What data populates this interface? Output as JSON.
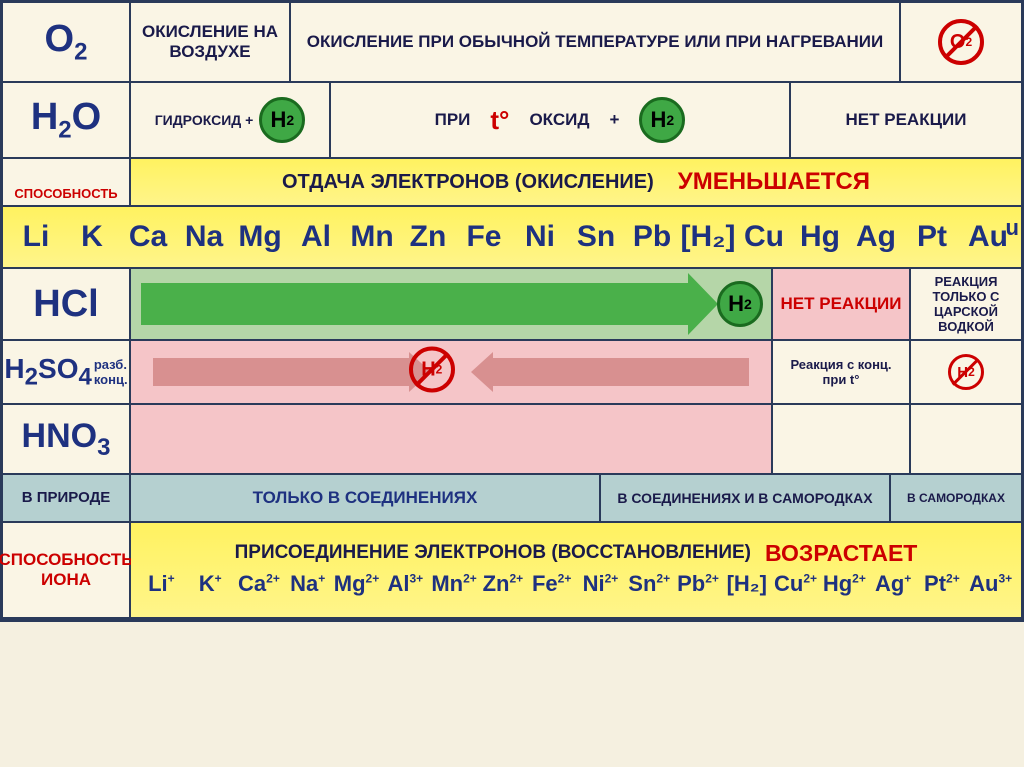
{
  "colors": {
    "border": "#2a3a5a",
    "formula": "#1e3180",
    "red": "#cc0000",
    "yellow": "#fff260",
    "green_circle": "#3fa845",
    "green_arrow": "#4ab04a",
    "pink": "#f5c5c8",
    "teal": "#b5d0d0",
    "bg": "#faf5e5"
  },
  "row1": {
    "formula": "O",
    "sub": "2",
    "c1": "ОКИСЛЕНИЕ НА ВОЗДУХЕ",
    "c2": "ОКИСЛЕНИЕ ПРИ ОБЫЧНОЙ ТЕМПЕРАТУРЕ ИЛИ ПРИ НАГРЕВАНИИ",
    "no_label": "O",
    "no_sub": "2"
  },
  "row2": {
    "formula": "H",
    "sub": "2",
    "suffix": "O",
    "c1a": "ГИДРОКСИД +",
    "c2a": "ПРИ",
    "c2b": "t°",
    "c2c": "ОКСИД",
    "c2d": "+",
    "c3": "НЕТ РЕАКЦИИ",
    "h2": "H",
    "h2sub": "2"
  },
  "row3": {
    "left": "СПОСОБНОСТЬ",
    "title": "ОТДАЧА ЭЛЕКТРОНОВ (ОКИСЛЕНИЕ)",
    "right": "УМЕНЬШАЕТСЯ"
  },
  "elements": [
    "Li",
    "K",
    "Ca",
    "Na",
    "Mg",
    "Al",
    "Mn",
    "Zn",
    "Fe",
    "Ni",
    "Sn",
    "Pb",
    "[H₂]",
    "Cu",
    "Hg",
    "Ag",
    "Pt",
    "Au"
  ],
  "extra_u": "u",
  "acids": {
    "hcl": "HCl",
    "h2so4": "H",
    "h2so4_s1": "2",
    "h2so4_mid": "SO",
    "h2so4_s2": "4",
    "razb": "разб.",
    "konc": "конц.",
    "hno3": "HNO",
    "hno3_s": "3",
    "no_reaction": "НЕТ РЕАКЦИИ",
    "conc_reaction": "Реакция с конц. при t°",
    "tsarskaya": "РЕАКЦИЯ ТОЛЬКО С ЦАРСКОЙ ВОДКОЙ",
    "h2": "H",
    "h2sub": "2"
  },
  "nature": {
    "left": "В ПРИРОДЕ",
    "c1": "ТОЛЬКО В СОЕДИНЕНИЯХ",
    "c2": "В СОЕДИНЕНИЯХ  И В САМОРОДКАХ",
    "c3": "В САМОРОДКАХ"
  },
  "bottom": {
    "left": "СПОСОБНОСТЬ ИОНА",
    "title": "ПРИСОЕДИНЕНИЕ ЭЛЕКТРОНОВ (ВОССТАНОВЛЕНИЕ)",
    "right": "ВОЗРАСТАЕТ"
  },
  "ions": [
    {
      "el": "Li",
      "ch": "+"
    },
    {
      "el": "K",
      "ch": "+"
    },
    {
      "el": "Ca",
      "ch": "2+"
    },
    {
      "el": "Na",
      "ch": "+"
    },
    {
      "el": "Mg",
      "ch": "2+"
    },
    {
      "el": "Al",
      "ch": "3+"
    },
    {
      "el": "Mn",
      "ch": "2+"
    },
    {
      "el": "Zn",
      "ch": "2+"
    },
    {
      "el": "Fe",
      "ch": "2+"
    },
    {
      "el": "Ni",
      "ch": "2+"
    },
    {
      "el": "Sn",
      "ch": "2+"
    },
    {
      "el": "Pb",
      "ch": "2+"
    },
    {
      "el": "[H₂]",
      "ch": ""
    },
    {
      "el": "Cu",
      "ch": "2+"
    },
    {
      "el": "Hg",
      "ch": "2+"
    },
    {
      "el": "Ag",
      "ch": "+"
    },
    {
      "el": "Pt",
      "ch": "2+"
    },
    {
      "el": "Au",
      "ch": "3+"
    }
  ]
}
